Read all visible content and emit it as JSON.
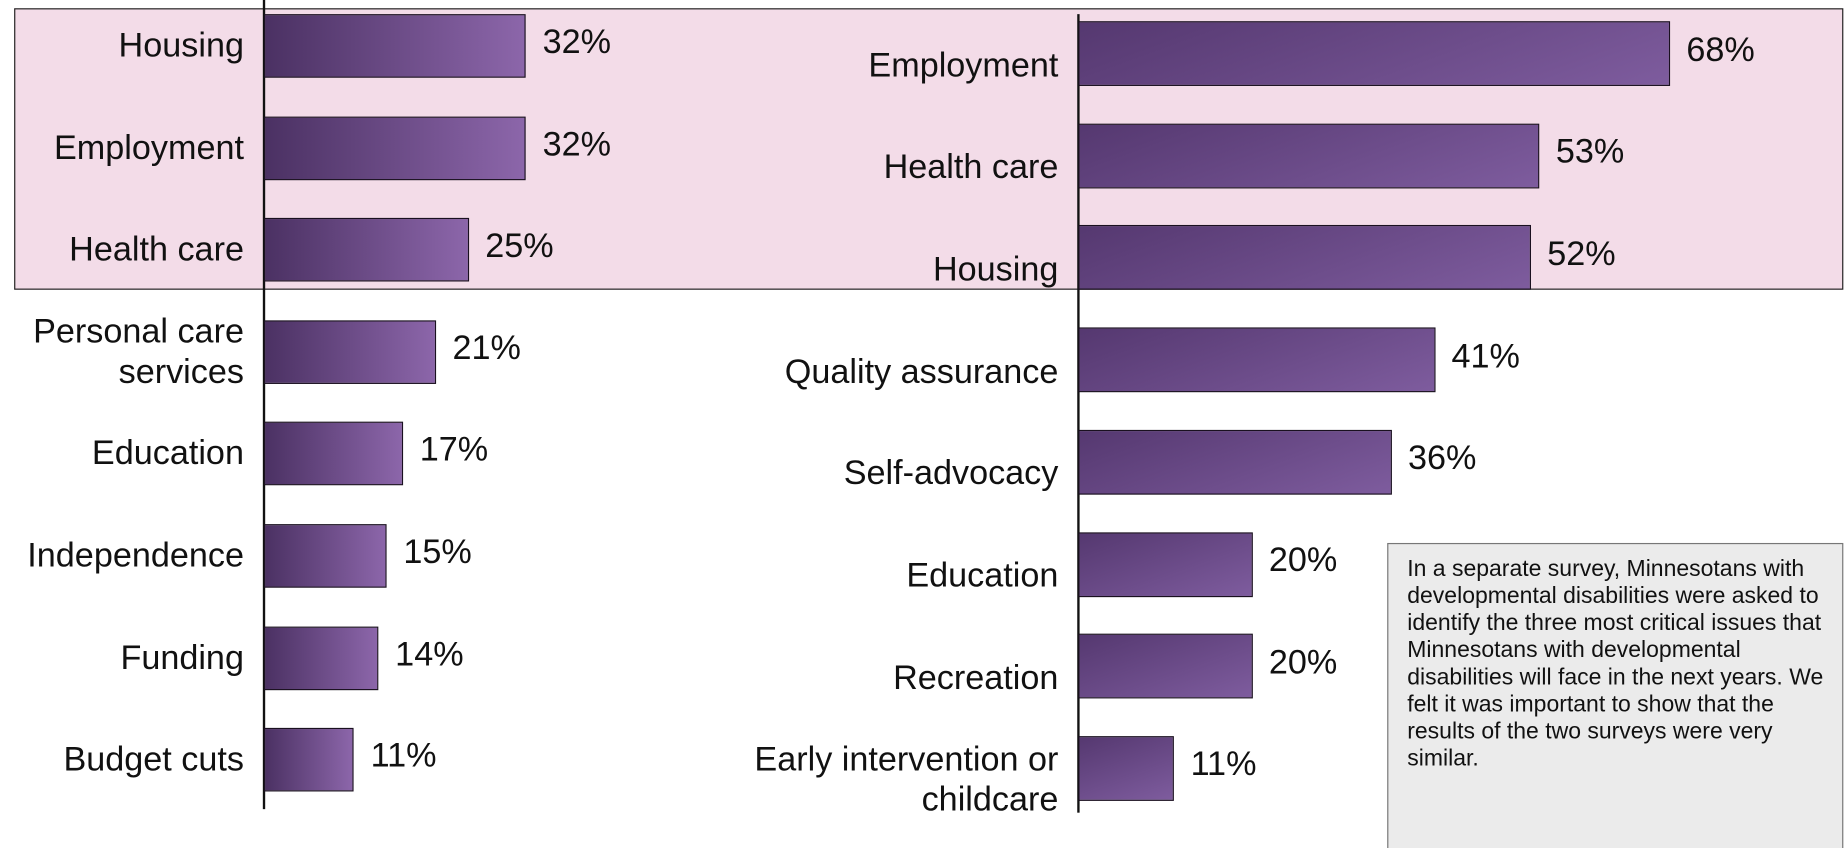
{
  "chart_data": [
    {
      "type": "bar",
      "orientation": "horizontal",
      "categories": [
        "Housing",
        "Employment",
        "Health care",
        "Personal care services",
        "Education",
        "Independence",
        "Funding",
        "Budget cuts"
      ],
      "values": [
        32,
        32,
        25,
        21,
        17,
        15,
        14,
        11
      ],
      "value_labels": [
        "32%",
        "32%",
        "25%",
        "21%",
        "17%",
        "15%",
        "14%",
        "11%"
      ],
      "color": "#6e4c8c"
    },
    {
      "type": "bar",
      "orientation": "horizontal",
      "categories": [
        "Employment",
        "Health care",
        "Housing",
        "Quality assurance",
        "Self-advocacy",
        "Education",
        "Recreation",
        "Early intervention or childcare"
      ],
      "values": [
        68,
        53,
        52,
        41,
        36,
        20,
        20,
        11
      ],
      "value_labels": [
        "68%",
        "53%",
        "52%",
        "41%",
        "36%",
        "20%",
        "20%",
        "11%"
      ],
      "color": "#6a4a88"
    }
  ],
  "note": "In a separate survey, Minnesotans with developmental disabilities were asked to identify the three most critical issues that Minnesotans with developmental disabilities will face in the next years.  We felt it was important to show that the results of the two surveys were very similar."
}
